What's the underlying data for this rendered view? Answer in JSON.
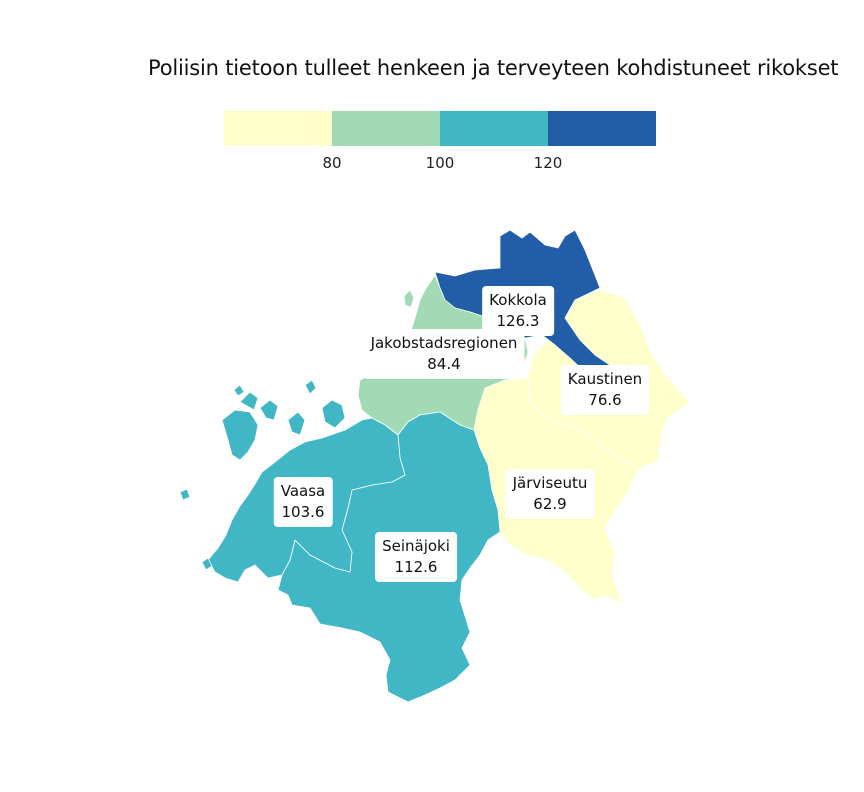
{
  "title": "Poliisin tietoon tulleet henkeen ja terveyteen kohdistuneet rikokset",
  "legend": {
    "colors": [
      "#ffffcc",
      "#a1dab4",
      "#41b6c4",
      "#225ea8"
    ],
    "ticks": [
      "80",
      "100",
      "120"
    ]
  },
  "regions": {
    "kokkola": {
      "name": "Kokkola",
      "value": "126.3",
      "color": "#225ea8"
    },
    "jakobstad": {
      "name": "Jakobstadsregionen",
      "value": "84.4",
      "color": "#a1dab4"
    },
    "kaustinen": {
      "name": "Kaustinen",
      "value": "76.6",
      "color": "#ffffcc"
    },
    "vaasa": {
      "name": "Vaasa",
      "value": "103.6",
      "color": "#41b6c4"
    },
    "jarviseutu": {
      "name": "Järviseutu",
      "value": "62.9",
      "color": "#ffffcc"
    },
    "seinajoki": {
      "name": "Seinäjoki",
      "value": "112.6",
      "color": "#41b6c4"
    }
  }
}
